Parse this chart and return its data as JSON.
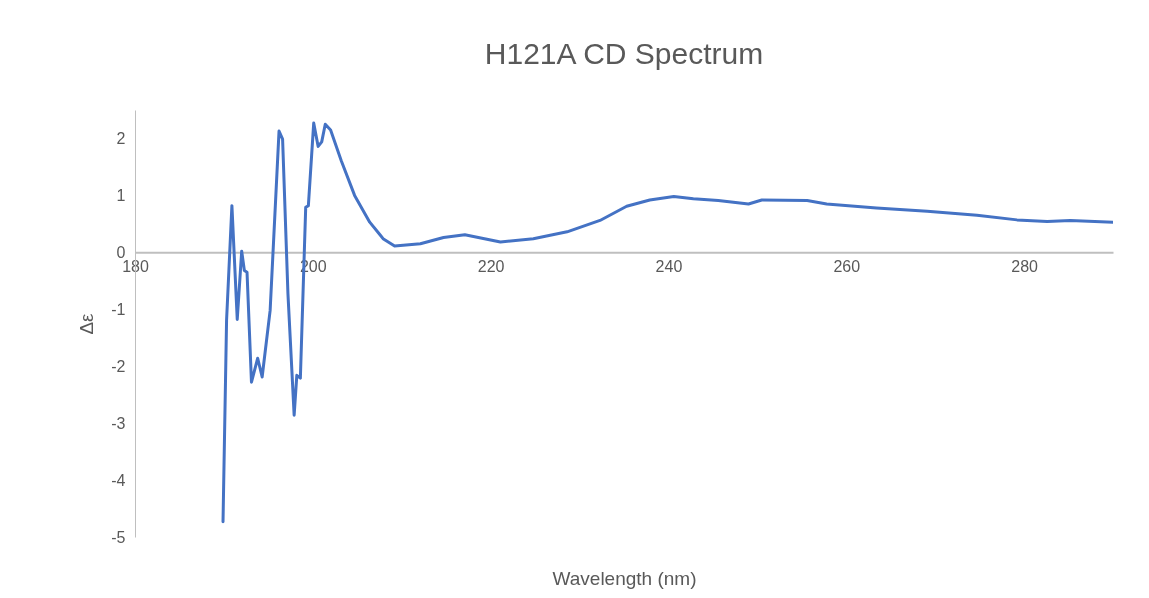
{
  "chart_data": {
    "type": "line",
    "title": "H121A CD Spectrum",
    "xlabel": "Wavelength (nm)",
    "ylabel": "Δε",
    "x": [
      189.9,
      190.3,
      190.9,
      191.5,
      192.0,
      192.3,
      192.6,
      193.1,
      193.8,
      194.3,
      195.2,
      196.2,
      196.6,
      197.2,
      197.9,
      198.2,
      198.6,
      199.2,
      199.5,
      200.1,
      200.6,
      201.0,
      201.4,
      202.0,
      203.2,
      204.7,
      206.4,
      207.6,
      207.9,
      209.2,
      212.1,
      214.7,
      217.1,
      221.1,
      224.8,
      228.6,
      232.3,
      235.3,
      237.9,
      240.6,
      242.8,
      245.6,
      249.0,
      250.5,
      255.6,
      257.8,
      263.4,
      269.1,
      274.7,
      279.2,
      282.6,
      285.2,
      290.0
    ],
    "series": [
      {
        "color": "#4472c4",
        "values": [
          -4.73,
          -1.19,
          0.82,
          -1.18,
          0.02,
          -0.32,
          -0.35,
          -2.28,
          -1.86,
          -2.19,
          -1.02,
          2.13,
          1.99,
          -0.72,
          -2.86,
          -2.16,
          -2.21,
          0.79,
          0.82,
          2.27,
          1.86,
          1.94,
          2.25,
          2.15,
          1.61,
          1.0,
          0.53,
          0.3,
          0.24,
          0.11,
          0.15,
          0.26,
          0.31,
          0.18,
          0.24,
          0.36,
          0.56,
          0.81,
          0.92,
          0.98,
          0.94,
          0.91,
          0.85,
          0.92,
          0.91,
          0.85,
          0.78,
          0.72,
          0.65,
          0.57,
          0.54,
          0.56,
          0.53
        ]
      }
    ],
    "xlim": [
      180,
      290
    ],
    "xticks": [
      180,
      200,
      220,
      240,
      260,
      280
    ],
    "ylim": [
      -5,
      2.5
    ],
    "yticks": [
      -5,
      -4,
      -3,
      -2,
      -1,
      0,
      1,
      2
    ],
    "grid": false,
    "marker": "none",
    "line_style": "solid"
  }
}
